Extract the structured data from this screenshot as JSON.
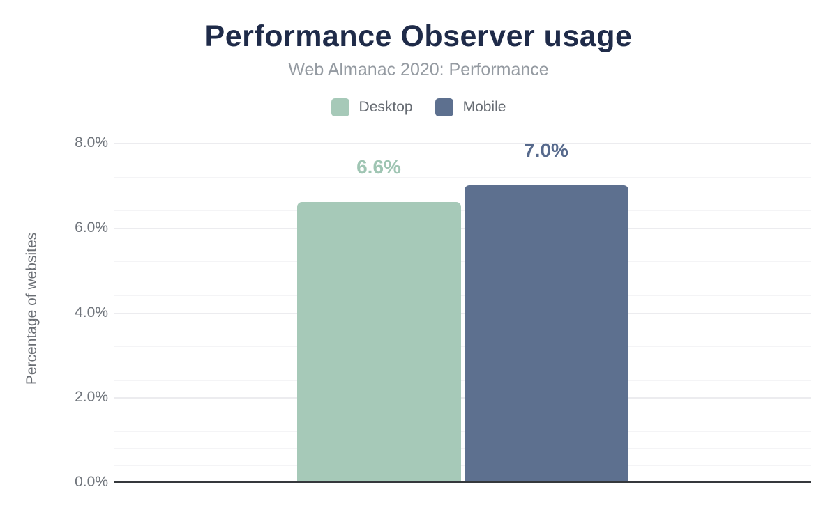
{
  "chart_data": {
    "type": "bar",
    "title": "Performance Observer usage",
    "subtitle": "Web Almanac 2020: Performance",
    "ylabel": "Percentage of websites",
    "xlabel": "",
    "categories": [
      ""
    ],
    "series": [
      {
        "name": "Desktop",
        "values": [
          6.6
        ],
        "data_label": "6.6%",
        "color": "#a6c9b8",
        "label_color": "#9fc5b3"
      },
      {
        "name": "Mobile",
        "values": [
          7.0
        ],
        "data_label": "7.0%",
        "color": "#5d708f",
        "label_color": "#56698c"
      }
    ],
    "ylim": [
      0,
      8
    ],
    "yticks": [
      {
        "value": 8,
        "label": "8.0%"
      },
      {
        "value": 6,
        "label": "6.0%"
      },
      {
        "value": 4,
        "label": "4.0%"
      },
      {
        "value": 2,
        "label": "2.0%"
      },
      {
        "value": 0,
        "label": "0.0%"
      }
    ],
    "minor_grid_step": 0.4,
    "major_grid_step": 2,
    "grid": "horizontal",
    "legend_position": "top",
    "colors": {
      "title_text": "#1f2b49",
      "subtitle_text": "#949aa1",
      "axis_text": "#70757c",
      "baseline": "#35383c"
    }
  }
}
